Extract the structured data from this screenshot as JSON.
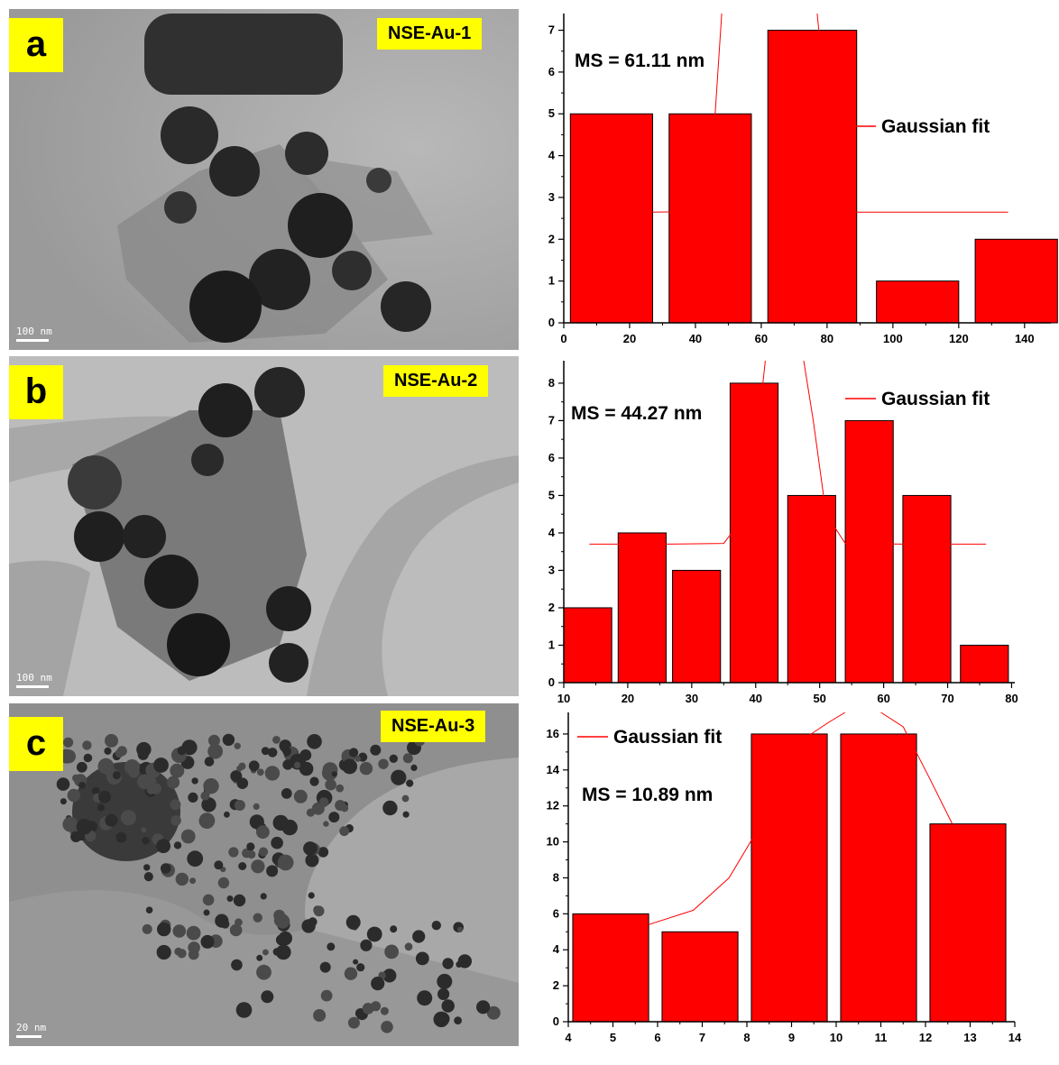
{
  "panels": [
    {
      "letter": "a",
      "sample": "NSE-Au-1",
      "scale": "100 nm"
    },
    {
      "letter": "b",
      "sample": "NSE-Au-2",
      "scale": "100 nm"
    },
    {
      "letter": "c",
      "sample": "NSE-Au-3",
      "scale": "20 nm"
    }
  ],
  "colors": {
    "bar": "#ff0000",
    "fit": "#ff0000",
    "label_bg": "#ffff00"
  },
  "chart_data": [
    {
      "type": "bar",
      "annotation": "MS = 61.11 nm",
      "legend": "Gaussian fit",
      "xlim": [
        0,
        148
      ],
      "ylim": [
        0,
        7.4
      ],
      "xticks": [
        0,
        20,
        40,
        60,
        80,
        100,
        120,
        140
      ],
      "yticks": [
        0,
        1,
        2,
        3,
        4,
        5,
        6,
        7
      ],
      "bars": [
        {
          "x0": 2,
          "x1": 27,
          "value": 5
        },
        {
          "x0": 32,
          "x1": 57,
          "value": 5
        },
        {
          "x0": 62,
          "x1": 89,
          "value": 7
        },
        {
          "x0": 95,
          "x1": 120,
          "value": 1
        },
        {
          "x0": 125,
          "x1": 150,
          "value": 2
        }
      ],
      "fit": [
        [
          27,
          2.65
        ],
        [
          36,
          2.66
        ],
        [
          42,
          2.7
        ],
        [
          46,
          5.0
        ],
        [
          48,
          7.4
        ]
      ],
      "fit2": [
        [
          77,
          7.4
        ],
        [
          80,
          5.0
        ],
        [
          83,
          2.7
        ],
        [
          88,
          2.65
        ],
        [
          135,
          2.65
        ]
      ],
      "xlabel": "",
      "ylabel": ""
    },
    {
      "type": "bar",
      "annotation": "MS = 44.27 nm",
      "legend": "Gaussian fit",
      "xlim": [
        10,
        80.5
      ],
      "ylim": [
        0,
        8.6
      ],
      "xticks": [
        10,
        20,
        30,
        40,
        50,
        60,
        70,
        80
      ],
      "yticks": [
        0,
        1,
        2,
        3,
        4,
        5,
        6,
        7,
        8
      ],
      "bars": [
        {
          "x0": 10,
          "x1": 17.5,
          "value": 2
        },
        {
          "x0": 18.5,
          "x1": 26,
          "value": 4
        },
        {
          "x0": 27,
          "x1": 34.5,
          "value": 3
        },
        {
          "x0": 36,
          "x1": 43.5,
          "value": 8
        },
        {
          "x0": 45,
          "x1": 52.5,
          "value": 5
        },
        {
          "x0": 54,
          "x1": 61.5,
          "value": 7
        },
        {
          "x0": 63,
          "x1": 70.5,
          "value": 5
        },
        {
          "x0": 72,
          "x1": 79.5,
          "value": 1
        }
      ],
      "fit": [
        [
          14,
          3.7
        ],
        [
          26,
          3.7
        ],
        [
          35,
          3.72
        ],
        [
          38.5,
          4.5
        ],
        [
          40.5,
          7.0
        ],
        [
          41.5,
          8.6
        ]
      ],
      "fit2": [
        [
          47.5,
          8.6
        ],
        [
          49,
          7.0
        ],
        [
          51,
          4.5
        ],
        [
          54,
          3.72
        ],
        [
          63,
          3.7
        ],
        [
          76,
          3.7
        ]
      ],
      "xlabel": "",
      "ylabel": ""
    },
    {
      "type": "bar",
      "annotation": "MS = 10.89 nm",
      "legend": "Gaussian fit",
      "xlim": [
        4,
        14
      ],
      "ylim": [
        0,
        17.2
      ],
      "xticks": [
        4,
        5,
        6,
        7,
        8,
        9,
        10,
        11,
        12,
        13,
        14
      ],
      "yticks": [
        0,
        2,
        4,
        6,
        8,
        10,
        12,
        14,
        16
      ],
      "bars": [
        {
          "x0": 4.1,
          "x1": 5.8,
          "value": 6
        },
        {
          "x0": 6.1,
          "x1": 7.8,
          "value": 5
        },
        {
          "x0": 8.1,
          "x1": 9.8,
          "value": 16
        },
        {
          "x0": 10.1,
          "x1": 11.8,
          "value": 16
        },
        {
          "x0": 12.1,
          "x1": 13.8,
          "value": 11
        }
      ],
      "fit": [
        [
          5.8,
          5.4
        ],
        [
          6.8,
          6.2
        ],
        [
          7.6,
          8.0
        ],
        [
          8.2,
          10.5
        ],
        [
          8.6,
          13.0
        ],
        [
          9.2,
          15.6
        ],
        [
          9.8,
          16.6
        ],
        [
          10.2,
          17.2
        ]
      ],
      "fit2": [
        [
          11.0,
          17.2
        ],
        [
          11.5,
          16.4
        ],
        [
          12.1,
          13.5
        ],
        [
          12.6,
          11.0
        ]
      ],
      "xlabel": "",
      "ylabel": ""
    }
  ]
}
